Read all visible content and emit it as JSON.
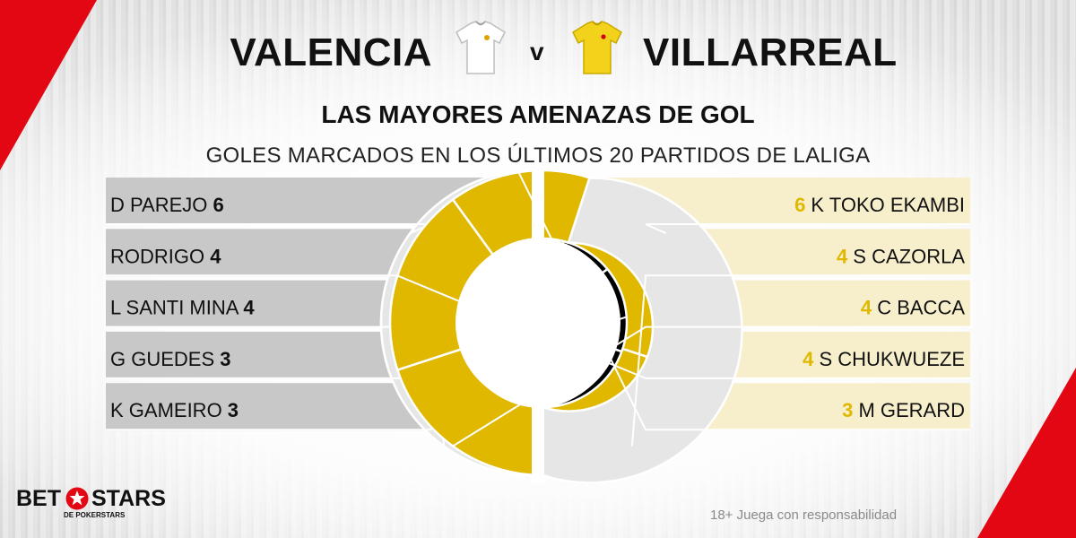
{
  "header": {
    "home_team": "VALENCIA",
    "vs": "v",
    "away_team": "VILLARREAL",
    "title": "LAS MAYORES AMENAZAS DE GOL",
    "subtitle": "GOLES MARCADOS EN LOS ÚLTIMOS 20 PARTIDOS DE LALIGA"
  },
  "colors": {
    "home": "#000000",
    "home_rest": "#e6e6e6",
    "home_panel": "#c8c8c8",
    "away": "#e0b800",
    "away_rest": "#e6e6e6",
    "away_panel": "#f7efcc",
    "accent_red": "#e30613"
  },
  "chart_data": [
    {
      "type": "pie",
      "team": "VALENCIA",
      "categories": [
        "D PAREJO",
        "RODRIGO",
        "L SANTI MINA",
        "G GUEDES",
        "K GAMEIRO"
      ],
      "values": [
        6,
        4,
        4,
        3,
        3
      ]
    },
    {
      "type": "pie",
      "team": "VILLARREAL",
      "categories": [
        "K TOKO EKAMBI",
        "S CAZORLA",
        "C BACCA",
        "S CHUKWUEZE",
        "M GERARD"
      ],
      "values": [
        6,
        4,
        4,
        4,
        3
      ]
    }
  ],
  "footer": {
    "disclaimer": "18+ Juega con responsabilidad",
    "brand_left": "BET",
    "brand_right": "STARS",
    "brand_sub": "DE POKERSTARS"
  }
}
